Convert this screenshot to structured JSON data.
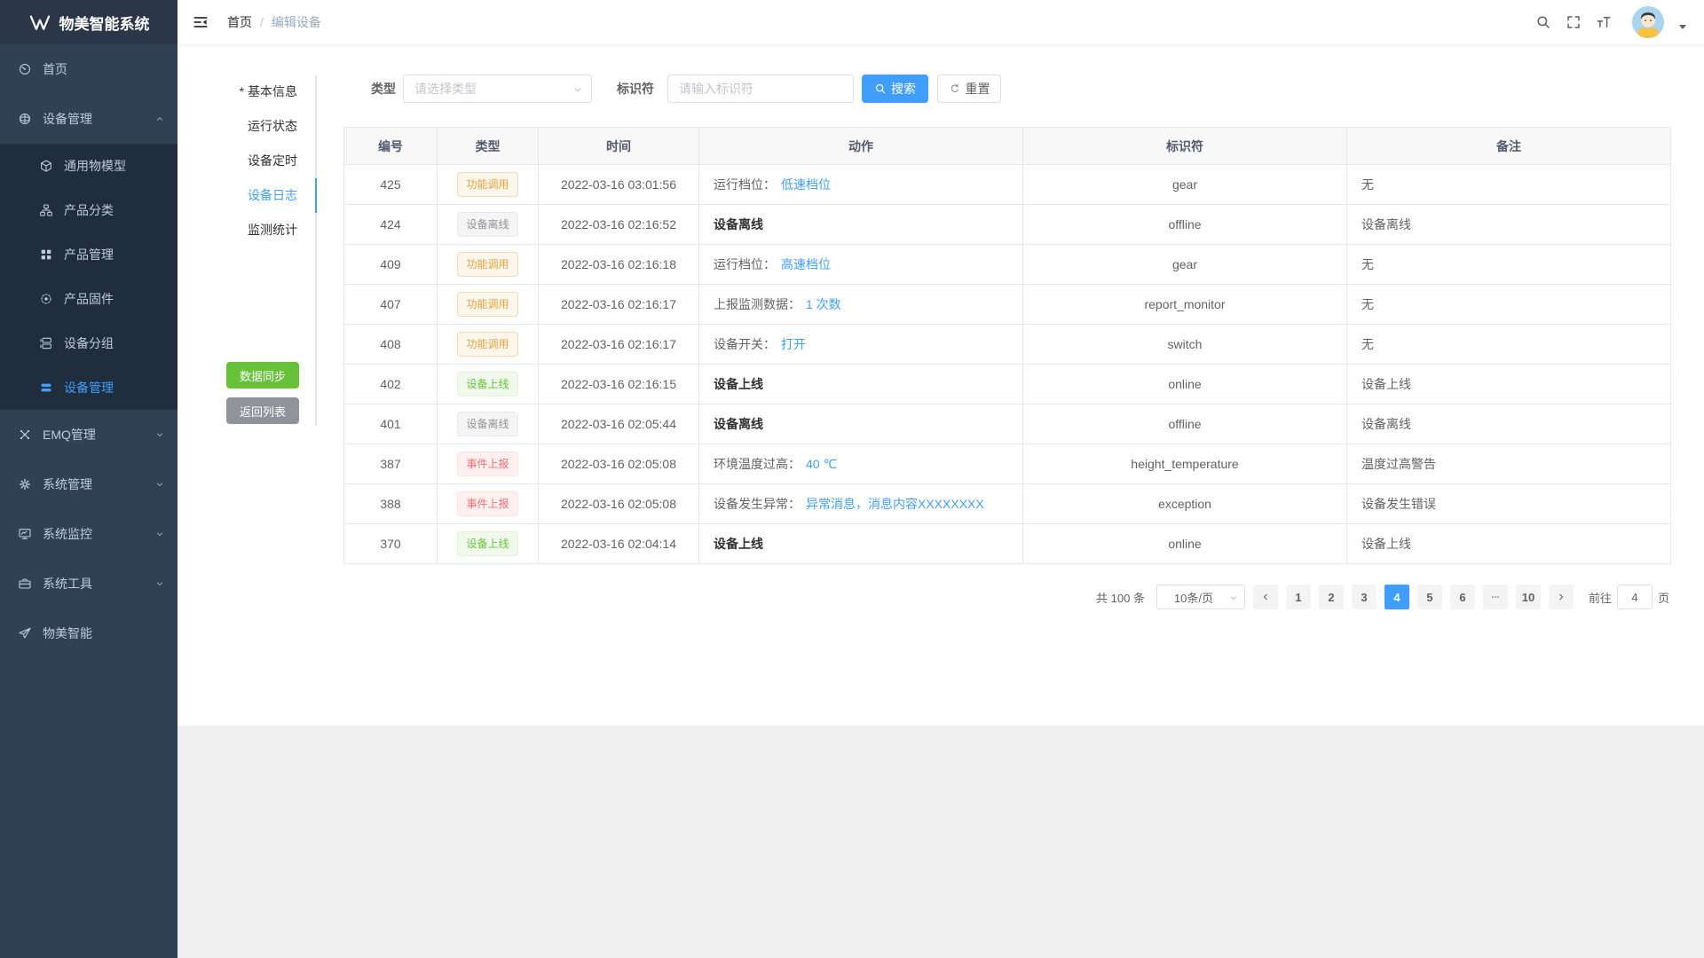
{
  "app": {
    "title": "物美智能系统"
  },
  "topbar": {
    "breadcrumb": {
      "home": "首页",
      "separator": "/",
      "current": "编辑设备"
    }
  },
  "sidebar": {
    "items": [
      {
        "key": "home",
        "label": "首页",
        "icon": "dashboard-icon",
        "level": 1
      },
      {
        "key": "device-management",
        "label": "设备管理",
        "icon": "device-manage-icon",
        "level": 1,
        "chevron": "up"
      },
      {
        "key": "thing-model",
        "label": "通用物模型",
        "icon": "model-icon",
        "level": 2
      },
      {
        "key": "product-category",
        "label": "产品分类",
        "icon": "category-icon",
        "level": 2
      },
      {
        "key": "product-management",
        "label": "产品管理",
        "icon": "product-icon",
        "level": 2
      },
      {
        "key": "product-firmware",
        "label": "产品固件",
        "icon": "firmware-icon",
        "level": 2
      },
      {
        "key": "device-group",
        "label": "设备分组",
        "icon": "group-icon",
        "level": 2
      },
      {
        "key": "device-list",
        "label": "设备管理",
        "icon": "device-list-icon",
        "level": 2,
        "active": true
      },
      {
        "key": "emq-management",
        "label": "EMQ管理",
        "icon": "emq-icon",
        "level": 1,
        "chevron": "down"
      },
      {
        "key": "system-management",
        "label": "系统管理",
        "icon": "system-icon",
        "level": 1,
        "chevron": "down"
      },
      {
        "key": "system-monitor",
        "label": "系统监控",
        "icon": "monitor-icon",
        "level": 1,
        "chevron": "down"
      },
      {
        "key": "system-tools",
        "label": "系统工具",
        "icon": "tools-icon",
        "level": 1,
        "chevron": "down"
      },
      {
        "key": "wumei-smart",
        "label": "物美智能",
        "icon": "plane-icon",
        "level": 1
      }
    ]
  },
  "side_tabs": {
    "items": [
      {
        "key": "basic-info",
        "label": "* 基本信息"
      },
      {
        "key": "run-status",
        "label": "运行状态"
      },
      {
        "key": "device-timer",
        "label": "设备定时"
      },
      {
        "key": "device-log",
        "label": "设备日志",
        "active": true
      },
      {
        "key": "monitor-stats",
        "label": "监测统计"
      }
    ],
    "sync_label": "数据同步",
    "back_label": "返回列表"
  },
  "filters": {
    "type_label": "类型",
    "type_placeholder": "请选择类型",
    "identifier_label": "标识符",
    "identifier_placeholder": "请输入标识符",
    "search_label": "搜索",
    "reset_label": "重置"
  },
  "table": {
    "columns": [
      "编号",
      "类型",
      "时间",
      "动作",
      "标识符",
      "备注"
    ],
    "rows": [
      {
        "id": "425",
        "tag": {
          "label": "功能调用",
          "type": "warning"
        },
        "time": "2022-03-16 03:01:56",
        "action": {
          "text": "运行档位：",
          "link": "低速档位"
        },
        "identifier": "gear",
        "remark": "无"
      },
      {
        "id": "424",
        "tag": {
          "label": "设备离线",
          "type": "info"
        },
        "time": "2022-03-16 02:16:52",
        "action": {
          "text": "设备离线",
          "bold": true
        },
        "identifier": "offline",
        "remark": "设备离线"
      },
      {
        "id": "409",
        "tag": {
          "label": "功能调用",
          "type": "warning"
        },
        "time": "2022-03-16 02:16:18",
        "action": {
          "text": "运行档位：",
          "link": "高速档位"
        },
        "identifier": "gear",
        "remark": "无"
      },
      {
        "id": "407",
        "tag": {
          "label": "功能调用",
          "type": "warning"
        },
        "time": "2022-03-16 02:16:17",
        "action": {
          "text": "上报监测数据：",
          "link": "1 次数"
        },
        "identifier": "report_monitor",
        "remark": "无"
      },
      {
        "id": "408",
        "tag": {
          "label": "功能调用",
          "type": "warning"
        },
        "time": "2022-03-16 02:16:17",
        "action": {
          "text": "设备开关：",
          "link": "打开"
        },
        "identifier": "switch",
        "remark": "无"
      },
      {
        "id": "402",
        "tag": {
          "label": "设备上线",
          "type": "success"
        },
        "time": "2022-03-16 02:16:15",
        "action": {
          "text": "设备上线",
          "bold": true
        },
        "identifier": "online",
        "remark": "设备上线"
      },
      {
        "id": "401",
        "tag": {
          "label": "设备离线",
          "type": "info"
        },
        "time": "2022-03-16 02:05:44",
        "action": {
          "text": "设备离线",
          "bold": true
        },
        "identifier": "offline",
        "remark": "设备离线"
      },
      {
        "id": "387",
        "tag": {
          "label": "事件上报",
          "type": "danger"
        },
        "time": "2022-03-16 02:05:08",
        "action": {
          "text": "环境温度过高：",
          "link": "40 ℃"
        },
        "identifier": "height_temperature",
        "remark": "温度过高警告"
      },
      {
        "id": "388",
        "tag": {
          "label": "事件上报",
          "type": "danger"
        },
        "time": "2022-03-16 02:05:08",
        "action": {
          "text": "设备发生异常：",
          "link": "异常消息，消息内容XXXXXXXX"
        },
        "identifier": "exception",
        "remark": "设备发生错误"
      },
      {
        "id": "370",
        "tag": {
          "label": "设备上线",
          "type": "success"
        },
        "time": "2022-03-16 02:04:14",
        "action": {
          "text": "设备上线",
          "bold": true
        },
        "identifier": "online",
        "remark": "设备上线"
      }
    ]
  },
  "pagination": {
    "total_label": "共 100 条",
    "page_size_label": "10条/页",
    "pages": [
      "1",
      "2",
      "3",
      "4",
      "5",
      "6",
      "···",
      "10"
    ],
    "active_page": "4",
    "jump_prefix": "前往",
    "jump_value": "4",
    "jump_suffix": "页"
  },
  "colors": {
    "accent": "#409EFF",
    "success": "#67C23A",
    "warning": "#E6A23C",
    "danger": "#F56C6C",
    "info": "#909399",
    "sidebar_bg": "#304156",
    "submenu_bg": "#1f2d3d"
  }
}
